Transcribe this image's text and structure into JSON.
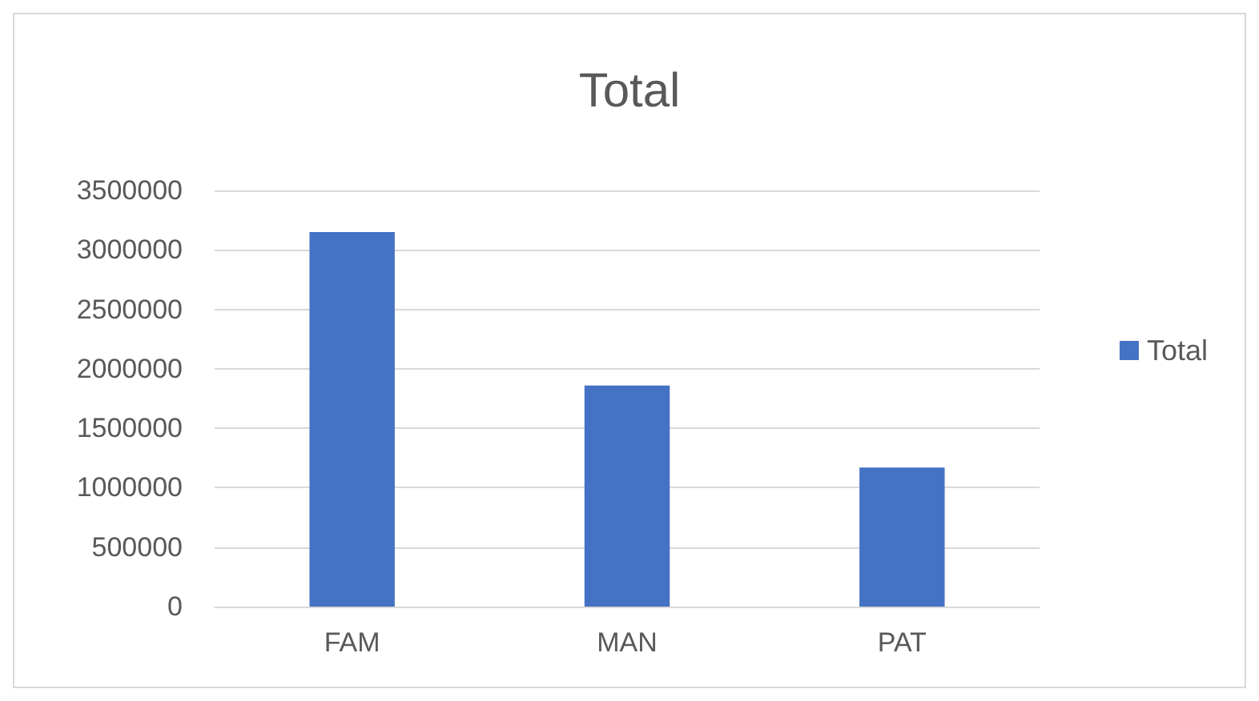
{
  "chart_data": {
    "type": "bar",
    "title": "Total",
    "categories": [
      "FAM",
      "MAN",
      "PAT"
    ],
    "series": [
      {
        "name": "Total",
        "color": "#4472c4",
        "values": [
          3150000,
          1860000,
          1170000
        ]
      }
    ],
    "ylim": [
      0,
      3500000
    ],
    "yticks": [
      0,
      500000,
      1000000,
      1500000,
      2000000,
      2500000,
      3000000,
      3500000
    ],
    "grid": "y",
    "legend": "right"
  }
}
